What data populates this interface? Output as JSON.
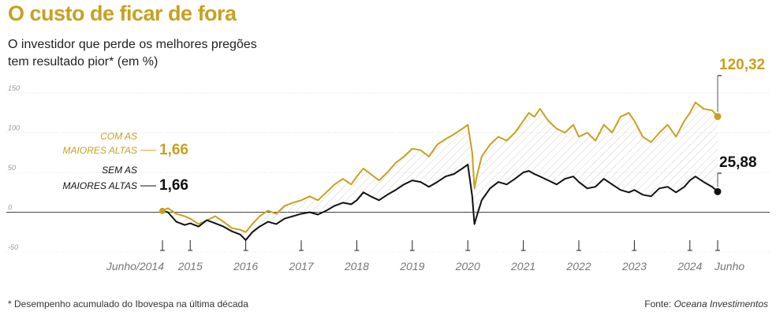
{
  "title": "O custo de ficar de fora",
  "subtitle": "O investidor que perde os melhores pregões tem resultado pior* (em %)",
  "footnote": "* Desempenho acumulado do Ibovespa na última década",
  "source_prefix": "Fonte: ",
  "source_name": "Oceana Investimentos",
  "colors": {
    "gold": "#c9a01f",
    "black": "#111111",
    "grid": "#d9d9d9",
    "hatch": "#cfcfcf"
  },
  "chart_data": {
    "type": "line",
    "title": "O custo de ficar de fora",
    "subtitle": "O investidor que perde os melhores pregões tem resultado pior* (em %)",
    "ylim": [
      -50,
      150
    ],
    "yticks": [
      -50,
      0,
      50,
      100,
      150
    ],
    "xlim": [
      2014.5,
      2024.5
    ],
    "xticks": [
      {
        "label": "Junho/2014",
        "x": 2014.5
      },
      {
        "label": "2015",
        "x": 2015.0
      },
      {
        "label": "2016",
        "x": 2016.0
      },
      {
        "label": "2017",
        "x": 2017.0
      },
      {
        "label": "2018",
        "x": 2018.0
      },
      {
        "label": "2019",
        "x": 2019.0
      },
      {
        "label": "2020",
        "x": 2020.0
      },
      {
        "label": "2021",
        "x": 2021.0
      },
      {
        "label": "2022",
        "x": 2022.0
      },
      {
        "label": "2023",
        "x": 2023.0
      },
      {
        "label": "2024",
        "x": 2024.0
      },
      {
        "label": "Junho",
        "x": 2024.5
      }
    ],
    "start_value_label": "1,66",
    "series": [
      {
        "name": "COM AS MAIORES ALTAS",
        "label_lines": [
          "COM AS",
          "MAIORES ALTAS"
        ],
        "end_label": "120,32",
        "color": "#c9a01f",
        "x": [
          2014.5,
          2014.6,
          2014.75,
          2014.9,
          2015.0,
          2015.15,
          2015.3,
          2015.45,
          2015.6,
          2015.75,
          2015.9,
          2016.0,
          2016.12,
          2016.25,
          2016.4,
          2016.55,
          2016.7,
          2016.85,
          2017.0,
          2017.15,
          2017.3,
          2017.45,
          2017.6,
          2017.75,
          2017.9,
          2018.0,
          2018.12,
          2018.25,
          2018.4,
          2018.55,
          2018.7,
          2018.85,
          2019.0,
          2019.15,
          2019.3,
          2019.45,
          2019.6,
          2019.75,
          2019.9,
          2020.0,
          2020.08,
          2020.12,
          2020.16,
          2020.25,
          2020.4,
          2020.55,
          2020.7,
          2020.85,
          2021.0,
          2021.1,
          2021.2,
          2021.3,
          2021.45,
          2021.6,
          2021.75,
          2021.9,
          2022.0,
          2022.15,
          2022.3,
          2022.45,
          2022.6,
          2022.75,
          2022.9,
          2023.0,
          2023.15,
          2023.3,
          2023.45,
          2023.6,
          2023.75,
          2023.9,
          2024.0,
          2024.1,
          2024.25,
          2024.4,
          2024.5
        ],
        "y": [
          1.66,
          5,
          -2,
          -5,
          -8,
          -15,
          -10,
          -5,
          -12,
          -20,
          -22,
          -25,
          -15,
          -5,
          2,
          -2,
          8,
          12,
          15,
          20,
          15,
          25,
          35,
          42,
          35,
          45,
          55,
          48,
          40,
          50,
          62,
          70,
          80,
          78,
          70,
          85,
          92,
          98,
          105,
          110,
          75,
          30,
          45,
          70,
          85,
          95,
          90,
          100,
          115,
          125,
          120,
          130,
          115,
          105,
          100,
          110,
          95,
          100,
          90,
          110,
          100,
          120,
          125,
          115,
          95,
          88,
          100,
          110,
          95,
          115,
          125,
          138,
          130,
          128,
          120.32
        ]
      },
      {
        "name": "SEM AS MAIORES ALTAS",
        "label_lines": [
          "SEM AS",
          "MAIORES ALTAS"
        ],
        "end_label": "25,88",
        "color": "#111111",
        "x": [
          2014.5,
          2014.6,
          2014.75,
          2014.9,
          2015.0,
          2015.15,
          2015.3,
          2015.45,
          2015.6,
          2015.75,
          2015.9,
          2016.0,
          2016.12,
          2016.25,
          2016.4,
          2016.55,
          2016.7,
          2016.85,
          2017.0,
          2017.15,
          2017.3,
          2017.45,
          2017.6,
          2017.75,
          2017.9,
          2018.0,
          2018.12,
          2018.25,
          2018.4,
          2018.55,
          2018.7,
          2018.85,
          2019.0,
          2019.15,
          2019.3,
          2019.45,
          2019.6,
          2019.75,
          2019.9,
          2020.0,
          2020.08,
          2020.12,
          2020.16,
          2020.25,
          2020.4,
          2020.55,
          2020.7,
          2020.85,
          2021.0,
          2021.1,
          2021.2,
          2021.3,
          2021.45,
          2021.6,
          2021.75,
          2021.9,
          2022.0,
          2022.15,
          2022.3,
          2022.45,
          2022.6,
          2022.75,
          2022.9,
          2023.0,
          2023.15,
          2023.3,
          2023.45,
          2023.6,
          2023.75,
          2023.9,
          2024.0,
          2024.1,
          2024.25,
          2024.4,
          2024.5
        ],
        "y": [
          1.66,
          0,
          -12,
          -16,
          -14,
          -18,
          -10,
          -14,
          -18,
          -24,
          -28,
          -35,
          -25,
          -18,
          -12,
          -15,
          -8,
          -5,
          -2,
          0,
          -3,
          2,
          8,
          12,
          10,
          15,
          25,
          20,
          15,
          22,
          28,
          35,
          40,
          38,
          32,
          38,
          45,
          48,
          55,
          60,
          20,
          -15,
          -5,
          15,
          30,
          38,
          35,
          42,
          50,
          52,
          48,
          45,
          40,
          35,
          42,
          45,
          38,
          30,
          32,
          42,
          35,
          28,
          25,
          28,
          22,
          20,
          30,
          32,
          25,
          32,
          40,
          45,
          38,
          32,
          25.88
        ]
      }
    ]
  }
}
